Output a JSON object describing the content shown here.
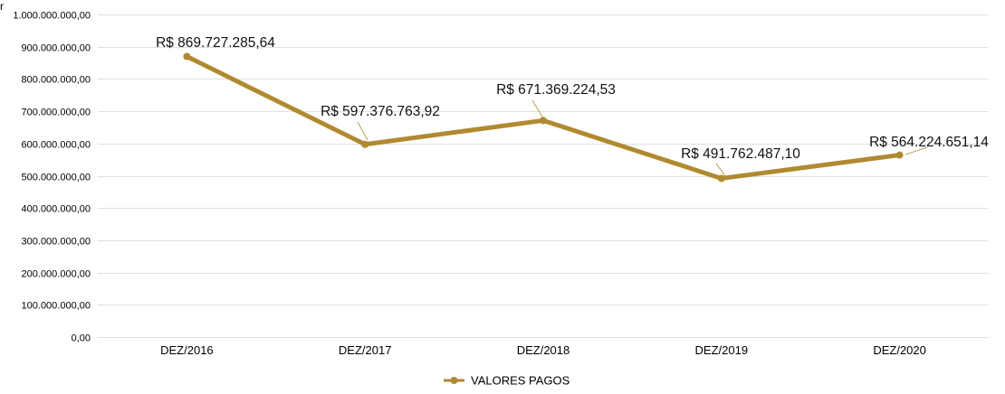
{
  "corner_glyph": "r",
  "colors": {
    "series": "#B08A30",
    "grid": "#E0E0E0",
    "text": "#000000"
  },
  "chart_data": {
    "type": "line",
    "title": "",
    "xlabel": "",
    "ylabel": "",
    "categories": [
      "DEZ/2016",
      "DEZ/2017",
      "DEZ/2018",
      "DEZ/2019",
      "DEZ/2020"
    ],
    "series": [
      {
        "name": "VALORES PAGOS",
        "values": [
          869727285.64,
          597376763.92,
          671369224.53,
          491762487.1,
          564224651.14
        ],
        "labels": [
          "R$ 869.727.285,64",
          "R$ 597.376.763,92",
          "R$ 671.369.224,53",
          "R$ 491.762.487,10",
          "R$ 564.224.651,14"
        ]
      }
    ],
    "ylim": [
      0,
      1000000000
    ],
    "yticks": [
      0,
      100000000,
      200000000,
      300000000,
      400000000,
      500000000,
      600000000,
      700000000,
      800000000,
      900000000,
      1000000000
    ],
    "ytick_labels": [
      "0,00",
      "100.000.000,00",
      "200.000.000,00",
      "300.000.000,00",
      "400.000.000,00",
      "500.000.000,00",
      "600.000.000,00",
      "700.000.000,00",
      "800.000.000,00",
      "900.000.000,00",
      "1.000.000.000,00"
    ],
    "grid": true,
    "legend_position": "bottom"
  }
}
